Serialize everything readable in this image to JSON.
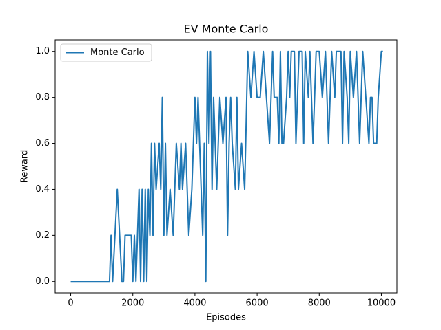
{
  "chart_data": {
    "type": "line",
    "title": "EV Monte Carlo",
    "xlabel": "Episodes",
    "ylabel": "Reward",
    "legend": "upper left",
    "xlim": [
      -500,
      10500
    ],
    "ylim": [
      -0.05,
      1.05
    ],
    "xticks": [
      0,
      2000,
      4000,
      6000,
      8000,
      10000
    ],
    "yticks": [
      {
        "value": 0,
        "label": "0.0"
      },
      {
        "value": 0.2,
        "label": "0.2"
      },
      {
        "value": 0.4,
        "label": "0.4"
      },
      {
        "value": 0.6,
        "label": "0.6"
      },
      {
        "value": 0.8,
        "label": "0.8"
      },
      {
        "value": 1,
        "label": "1.0"
      }
    ],
    "x": [
      0,
      1250,
      1300,
      1350,
      1500,
      1650,
      1700,
      1750,
      1950,
      2000,
      2050,
      2100,
      2200,
      2250,
      2300,
      2350,
      2400,
      2450,
      2500,
      2550,
      2600,
      2650,
      2700,
      2750,
      2850,
      2900,
      2950,
      3000,
      3050,
      3100,
      3200,
      3300,
      3400,
      3500,
      3550,
      3600,
      3700,
      3800,
      3900,
      4000,
      4050,
      4100,
      4200,
      4250,
      4300,
      4350,
      4400,
      4450,
      4500,
      4550,
      4600,
      4700,
      4800,
      4900,
      5000,
      5050,
      5100,
      5150,
      5200,
      5300,
      5350,
      5400,
      5500,
      5600,
      5700,
      5800,
      5900,
      6000,
      6100,
      6200,
      6300,
      6400,
      6500,
      6550,
      6650,
      6700,
      6750,
      6800,
      6850,
      6950,
      7000,
      7050,
      7100,
      7200,
      7250,
      7300,
      7350,
      7450,
      7500,
      7550,
      7650,
      7700,
      7800,
      7900,
      8000,
      8100,
      8200,
      8300,
      8400,
      8500,
      8550,
      8700,
      8750,
      8800,
      8900,
      8950,
      9000,
      9100,
      9200,
      9300,
      9350,
      9400,
      9500,
      9600,
      9650,
      9700,
      9750,
      9850,
      9900,
      10000,
      10050
    ],
    "series": [
      {
        "name": "Monte Carlo",
        "color": "#1f77b4",
        "values": [
          0,
          0,
          0.2,
          0,
          0.4,
          0,
          0,
          0.2,
          0.2,
          0,
          0.2,
          0,
          0.4,
          0,
          0.4,
          0,
          0.4,
          0,
          0.4,
          0.2,
          0.6,
          0.2,
          0.6,
          0.4,
          0.6,
          0.4,
          0.8,
          0.2,
          0.6,
          0.2,
          0.4,
          0.2,
          0.6,
          0.4,
          0.6,
          0.4,
          0.6,
          0.2,
          0.4,
          0.8,
          0.6,
          0.8,
          0.4,
          0.2,
          0.6,
          0,
          1,
          0.6,
          1,
          0.4,
          0.8,
          0.4,
          0.8,
          0.6,
          0.8,
          0.2,
          0.6,
          0.8,
          0.6,
          0.4,
          0.8,
          0.4,
          0.6,
          0.4,
          1,
          0.8,
          1,
          0.8,
          0.8,
          1,
          0.8,
          0.6,
          1,
          0.8,
          0.8,
          0.6,
          1,
          0.6,
          0.6,
          0.8,
          1,
          0.8,
          1,
          1,
          0.6,
          0.8,
          1,
          1,
          0.6,
          1,
          0.8,
          1,
          0.6,
          1,
          1,
          0.8,
          1,
          0.6,
          1,
          0.8,
          1,
          1,
          0.6,
          1,
          0.8,
          0.6,
          1,
          0.8,
          1,
          0.6,
          0.8,
          1,
          0.8,
          0.6,
          0.8,
          0.8,
          0.6,
          0.6,
          0.8,
          1,
          1
        ]
      }
    ]
  }
}
